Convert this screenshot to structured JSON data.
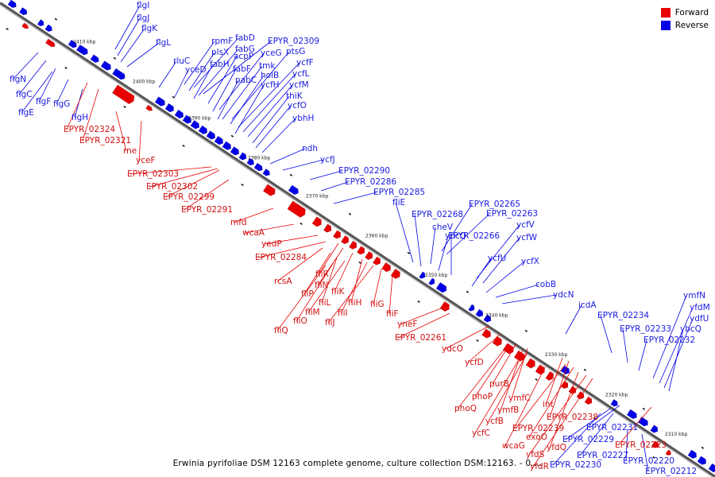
{
  "legend": {
    "forward_label": "Forward",
    "reverse_label": "Reverse",
    "forward_color": "#e80000",
    "reverse_color": "#0000e8"
  },
  "caption": "Erwinia pyrifoliae DSM 12163 complete genome, culture collection DSM:12163. - 0....",
  "scale_labels": [
    "2410 kbp",
    "2400 kbp",
    "2390 kbp",
    "2380 kbp",
    "2370 kbp",
    "2360 kbp",
    "2350 kbp",
    "2340 kbp",
    "2330 kbp",
    "2320 kbp",
    "2310 kbp"
  ],
  "reverse_genes": [
    "flgI",
    "flgJ",
    "flgK",
    "flgL",
    "rpmF",
    "fabD",
    "EPYR_02309",
    "plsX",
    "fabG",
    "rluC",
    "fabH",
    "acpP",
    "yceG",
    "ptsG",
    "yceD",
    "fabF",
    "tmk",
    "ycfF",
    "holB",
    "ycfL",
    "pabC",
    "ycfH",
    "ycfM",
    "thiK",
    "ycfO",
    "ybhH",
    "flgN",
    "flgC",
    "flgF",
    "flgE",
    "flgG",
    "flgH",
    "ndh",
    "ycfJ",
    "EPYR_02290",
    "EPYR_02286",
    "EPYR_02285",
    "fliE",
    "EPYR_02268",
    "EPYR_02265",
    "EPYR_02263",
    "cheV",
    "ybcQ",
    "EPYR_02266",
    "ycfV",
    "ycfW",
    "ycfU",
    "ycfX",
    "cobB",
    "ydcN",
    "icdA",
    "ymfN",
    "yfdM",
    "EPYR_02234",
    "ydfU",
    "EPYR_02233",
    "ybcQ",
    "EPYR_02232",
    "EPYR_02231",
    "EPYR_02229",
    "EPYR_02227",
    "EPYR_02230",
    "EPYR_02220",
    "EPYR_02212"
  ],
  "forward_genes": [
    "EPYR_02324",
    "EPYR_02321",
    "rne",
    "yceF",
    "EPYR_02303",
    "EPYR_02302",
    "EPYR_02299",
    "EPYR_02291",
    "mfd",
    "wcaA",
    "yedP",
    "EPYR_02284",
    "fliR",
    "rcsA",
    "fliN",
    "fliP",
    "fliK",
    "fliL",
    "fliM",
    "fliH",
    "fliO",
    "fliI",
    "fliQ",
    "fliJ",
    "fliG",
    "fliF",
    "yneF",
    "EPYR_02261",
    "ydcO",
    "ycfD",
    "purB",
    "phoP",
    "ymfC",
    "phoQ",
    "ymfB",
    "ycfB",
    "int",
    "EPYR_02238",
    "ycfC",
    "EPYR_02239",
    "exoO",
    "wcaG",
    "yfdQ",
    "yfdS",
    "yfdR",
    "EPYR_02223"
  ]
}
